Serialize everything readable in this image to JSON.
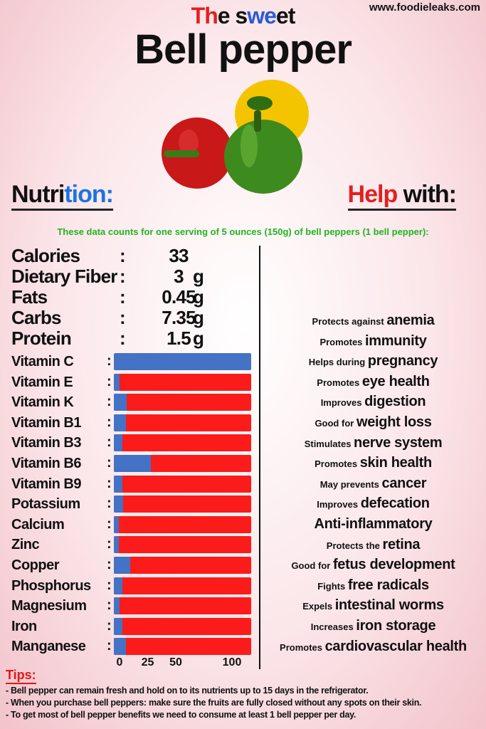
{
  "site": "www.foodieleaks.com",
  "title": {
    "line1_parts": [
      {
        "text": "Th",
        "color": "#e32020"
      },
      {
        "text": "e s",
        "color": "#111111"
      },
      {
        "text": "we",
        "color": "#2a5bd7"
      },
      {
        "text": "et",
        "color": "#111111"
      }
    ],
    "line2": "Bell pepper"
  },
  "headers": {
    "left_a": "Nutri",
    "left_b": "tion:",
    "right_a": "Help",
    "right_b": " with:"
  },
  "note": "These data counts for one serving of 5 ounces (150g) of bell peppers (1 bell pepper):",
  "macros": [
    {
      "name": "Calories",
      "value": "33",
      "unit": ""
    },
    {
      "name": "Dietary Fiber",
      "value": "3",
      "unit": "g"
    },
    {
      "name": "Fats",
      "value": "0.45",
      "unit": "g"
    },
    {
      "name": "Carbs",
      "value": "7.35",
      "unit": "g"
    },
    {
      "name": "Protein",
      "value": "1.5",
      "unit": "g"
    }
  ],
  "colon": ":",
  "chart_data": {
    "type": "bar",
    "orientation": "horizontal",
    "stacked_background": true,
    "categories": [
      "Vitamin C",
      "Vitamin E",
      "Vitamin K",
      "Vitamin B1",
      "Vitamin B3",
      "Vitamin B6",
      "Vitamin B9",
      "Potassium",
      "Calcium",
      "Zinc",
      "Copper",
      "Phosphorus",
      "Magnesium",
      "Iron",
      "Manganese"
    ],
    "values": [
      116,
      5,
      11,
      10,
      7,
      31,
      7,
      8,
      4,
      4,
      14,
      7,
      5,
      7,
      10
    ],
    "xlim": [
      0,
      116
    ],
    "xticks": [
      "0",
      "25",
      "50",
      "100"
    ],
    "colors": {
      "value": "#4472c4",
      "remainder": "#fb1b1b"
    },
    "grid": false
  },
  "benefits": [
    {
      "small": "Protects against ",
      "big": "anemia"
    },
    {
      "small": "Promotes ",
      "big": "immunity"
    },
    {
      "small": "Helps during ",
      "big": "pregnancy"
    },
    {
      "small": "Promotes ",
      "big": "eye health"
    },
    {
      "small": "Improves ",
      "big": "digestion"
    },
    {
      "small": "Good for ",
      "big": "weight loss"
    },
    {
      "small": "Stimulates ",
      "big": "nerve system"
    },
    {
      "small": "Promotes ",
      "big": "skin health"
    },
    {
      "small": "May prevents ",
      "big": "cancer"
    },
    {
      "small": "Improves ",
      "big": "defecation"
    },
    {
      "small": "",
      "big": "Anti-inflammatory"
    },
    {
      "small": "Protects the ",
      "big": "retina"
    },
    {
      "small": "Good for ",
      "big": "fetus development"
    },
    {
      "small": "Fights ",
      "big": "free radicals"
    },
    {
      "small": "Expels ",
      "big": "intestinal worms"
    },
    {
      "small": "Increases ",
      "big": "iron storage"
    },
    {
      "small": "Promotes ",
      "big": "cardiovascular health"
    }
  ],
  "tips": {
    "heading": "Tips:",
    "items": [
      "- Bell pepper can remain fresh and hold on to its nutrients up to 15 days in the refrigerator.",
      "- When you purchase bell peppers: make sure the fruits are fully closed without any spots on their skin.",
      "- To get most of bell pepper benefits we need to consume at least 1 bell pepper per day."
    ]
  }
}
